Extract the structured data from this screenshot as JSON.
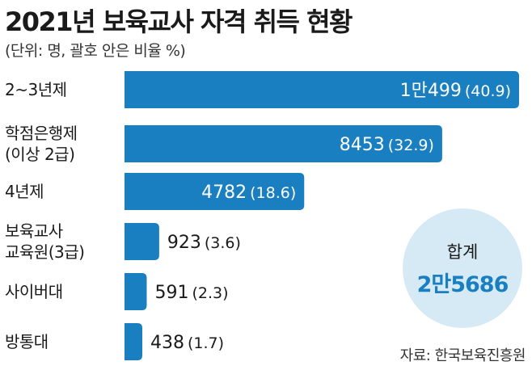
{
  "title": "2021년 보육교사 자격 취득 현황",
  "subtitle": "(단위: 명, 괄호 안은 비율 %)",
  "source": "자료: 한국보육진흥원",
  "total": {
    "label": "합계",
    "value": "2만5686"
  },
  "colors": {
    "bar": "#1a7fc1",
    "total_bg": "#d6eaf5"
  },
  "chart_data": {
    "type": "bar",
    "orientation": "horizontal",
    "title": "2021년 보육교사 자격 취득 현황",
    "unit_note": "(단위: 명, 괄호 안은 비율 %)",
    "categories": [
      "2~3년제",
      "학점은행제 (이상 2급)",
      "4년제",
      "보육교사 교육원(3급)",
      "사이버대",
      "방통대"
    ],
    "category_lines": [
      [
        "2~3년제"
      ],
      [
        "학점은행제",
        "(이상 2급)"
      ],
      [
        "4년제"
      ],
      [
        "보육교사",
        "교육원(3급)"
      ],
      [
        "사이버대"
      ],
      [
        "방통대"
      ]
    ],
    "values": [
      10499,
      8453,
      4782,
      923,
      591,
      438
    ],
    "value_labels": [
      "1만499",
      "8453",
      "4782",
      "923",
      "591",
      "438"
    ],
    "percent_labels": [
      "(40.9)",
      "(32.9)",
      "(18.6)",
      "(3.6)",
      "(2.3)",
      "(1.7)"
    ],
    "percents": [
      40.9,
      32.9,
      18.6,
      3.6,
      2.3,
      1.7
    ]
  }
}
